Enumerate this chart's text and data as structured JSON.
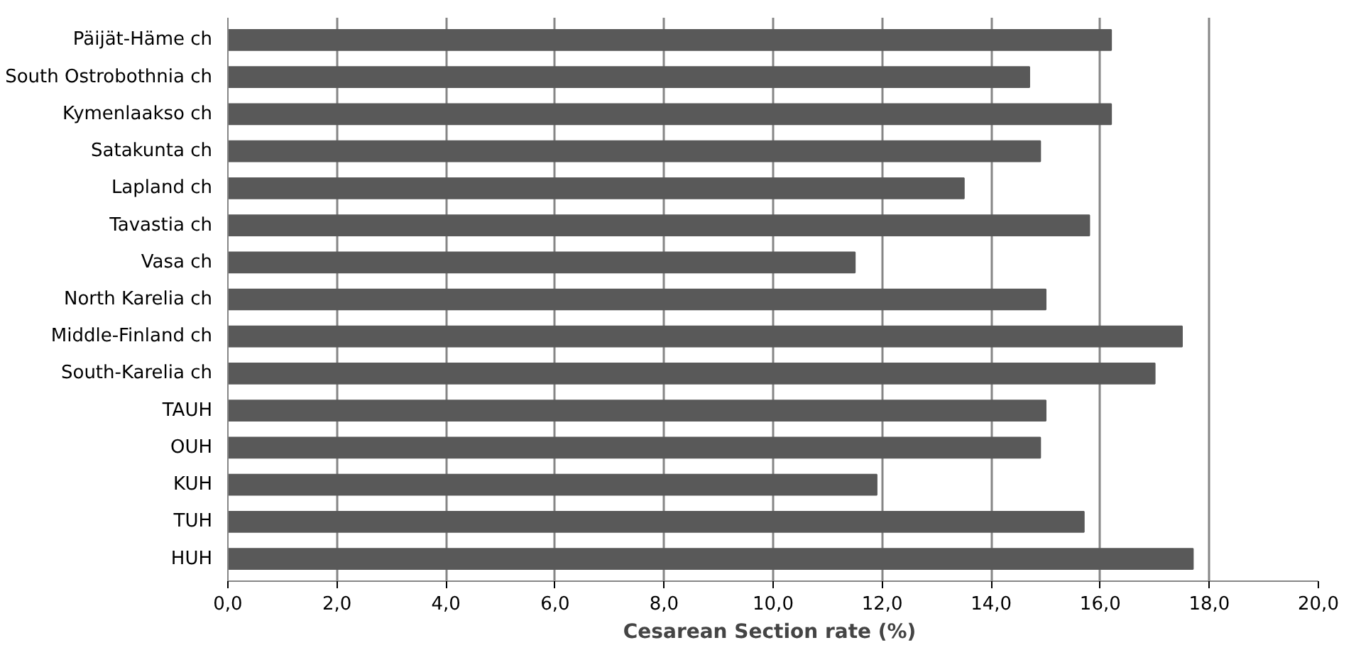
{
  "chart_data": {
    "type": "bar",
    "orientation": "horizontal",
    "xlabel": "Cesarean Section rate  (%)",
    "categories": [
      "Päijät-Häme ch",
      "South Ostrobothnia ch",
      "Kymenlaakso ch",
      "Satakunta ch",
      "Lapland ch",
      "Tavastia ch",
      "Vasa ch",
      "North Karelia ch",
      "Middle-Finland ch",
      "South-Karelia ch",
      "TAUH",
      "OUH",
      "KUH",
      "TUH",
      "HUH"
    ],
    "values": [
      16.2,
      14.7,
      16.2,
      14.9,
      13.5,
      15.8,
      11.5,
      15.0,
      17.5,
      17.0,
      15.0,
      14.9,
      11.9,
      15.7,
      17.7
    ],
    "color": "#595959",
    "xlim": [
      0,
      20
    ],
    "xticks": [
      {
        "value": 0,
        "label": "0,0"
      },
      {
        "value": 2,
        "label": "2,0"
      },
      {
        "value": 4,
        "label": "4,0"
      },
      {
        "value": 6,
        "label": "6,0"
      },
      {
        "value": 8,
        "label": "8,0"
      },
      {
        "value": 10,
        "label": "10,0"
      },
      {
        "value": 12,
        "label": "12,0"
      },
      {
        "value": 14,
        "label": "14,0"
      },
      {
        "value": 16,
        "label": "16,0"
      },
      {
        "value": 18,
        "label": "18,0"
      },
      {
        "value": 20,
        "label": "20,0"
      }
    ],
    "grid": "x"
  }
}
